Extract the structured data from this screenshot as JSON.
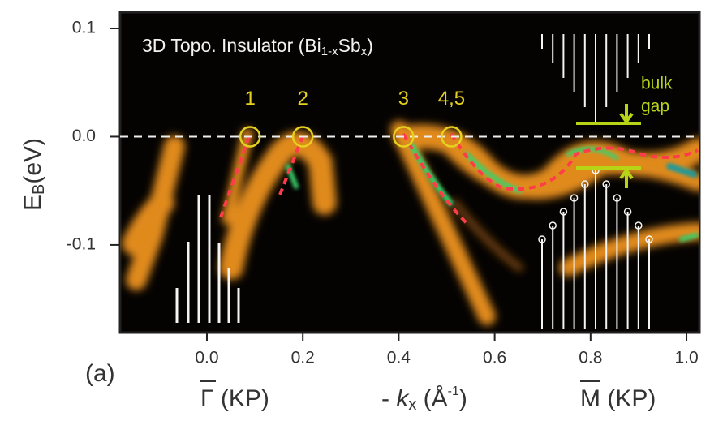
{
  "chart_data": {
    "type": "arpes-map",
    "title_parts": [
      "3D Topo. Insulator (Bi",
      "1-x",
      "Sb",
      "x",
      ")"
    ],
    "panel_label": "(a)",
    "y_label_parts": [
      "E",
      "B",
      "(eV)"
    ],
    "x_labels": {
      "gamma": {
        "symbol": "Γ",
        "text": " (KP)"
      },
      "kx": {
        "parts": [
          "- ",
          "k",
          "x",
          " (Å",
          "-1",
          ")"
        ]
      },
      "m": {
        "symbol": "M",
        "text": " (KP)"
      }
    },
    "gap_labels": [
      "bulk",
      "gap"
    ],
    "xlim": [
      -0.181,
      1.027
    ],
    "ylim": [
      -0.181,
      0.115
    ],
    "xticks": [
      {
        "value": 0,
        "label": "0.0"
      },
      0.2,
      0.4,
      0.6,
      0.8,
      {
        "value": 1,
        "label": "1.0"
      }
    ],
    "yticks": [
      0.1,
      {
        "value": 0,
        "label": "0.0"
      },
      -0.1
    ],
    "hline": 0,
    "points": [
      {
        "label": "1",
        "x": 0.09,
        "y": 0
      },
      {
        "label": "2",
        "x": 0.2,
        "y": 0
      },
      {
        "label": "3",
        "x": 0.41,
        "y": 0
      },
      {
        "label": "4,5",
        "x": 0.51,
        "y": 0
      }
    ],
    "marker_color": "#e6d21e",
    "label_color": "#e6d21e",
    "gap_color": "#b7d417"
  }
}
